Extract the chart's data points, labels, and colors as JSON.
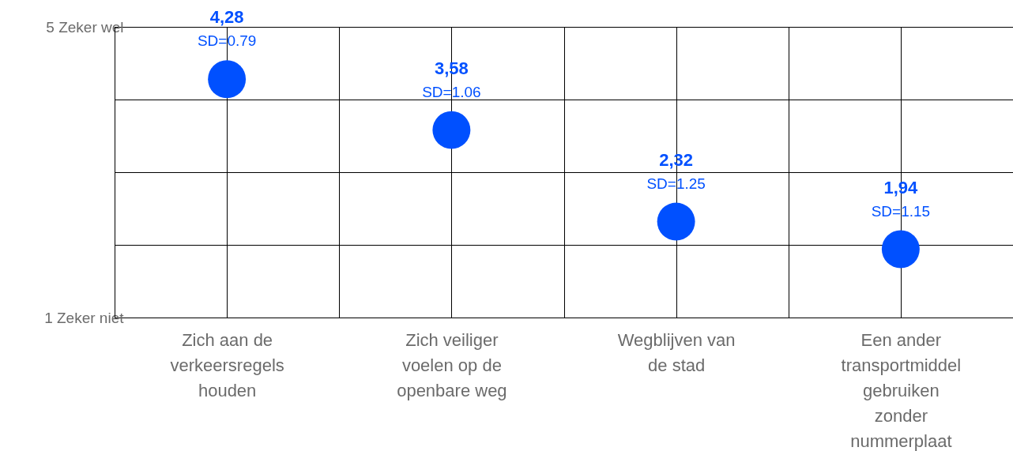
{
  "chart_data": {
    "type": "scatter",
    "categories": [
      "Zich aan de verkeersregels houden",
      "Zich veiliger voelen op de openbare weg",
      "Wegblijven van de stad",
      "Een ander transportmiddel gebruiken zonder nummerplaat"
    ],
    "series": [
      {
        "color": "#0050ff",
        "values": [
          4.28,
          3.58,
          2.32,
          1.94
        ],
        "value_labels": [
          "4,28",
          "3,58",
          "2,32",
          "1,94"
        ]
      }
    ],
    "annotations": [
      {
        "text": "SD=0.79",
        "x": "Zich aan de verkeersregels houden",
        "y": 4.28
      },
      {
        "text": "SD=1.06",
        "x": "Zich veiliger voelen op de openbare weg",
        "y": 3.58
      },
      {
        "text": "SD=1.25",
        "x": "Wegblijven van de stad",
        "y": 2.32
      },
      {
        "text": "SD=1.15",
        "x": "Een ander transportmiddel gebruiken zonder nummerplaat",
        "y": 1.94
      }
    ],
    "ylim": [
      1,
      5
    ],
    "yticks": [
      {
        "value": 1,
        "label": "1   Zeker niet"
      },
      {
        "value": 2,
        "label": null
      },
      {
        "value": 3,
        "label": null
      },
      {
        "value": 4,
        "label": null
      },
      {
        "value": 5,
        "label": "5   Zeker wel"
      }
    ],
    "grid": true,
    "marker": "circle"
  }
}
